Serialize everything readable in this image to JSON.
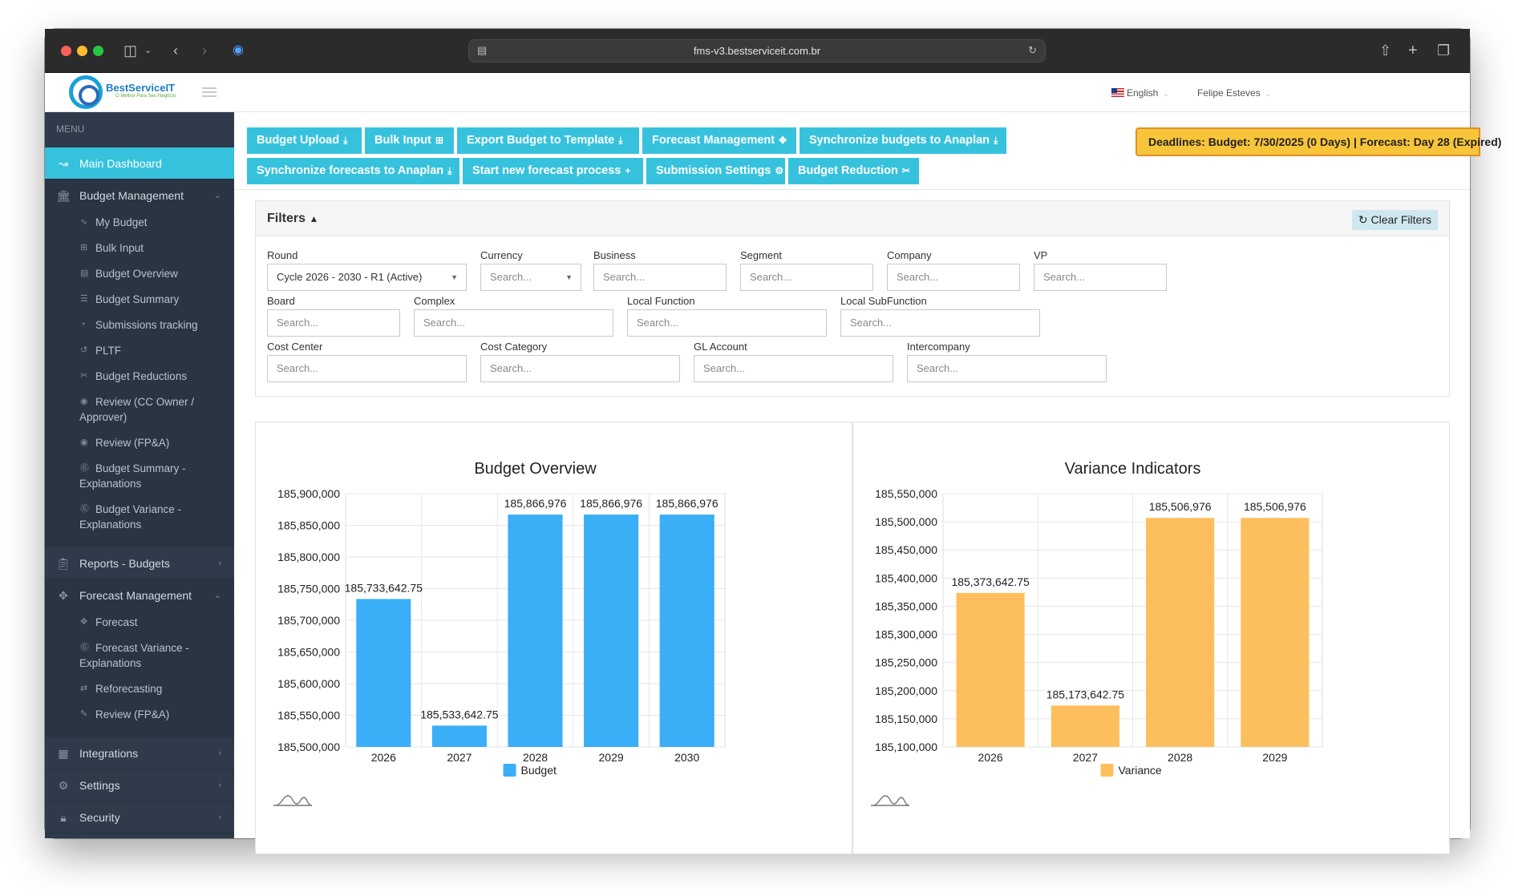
{
  "browser": {
    "url": "fms-v3.bestserviceit.com.br"
  },
  "brand": {
    "name": "BestServiceIT",
    "tagline": "O Melhor Para Seu Negócio"
  },
  "header": {
    "language": "English",
    "user": "Felipe Esteves"
  },
  "sidebar": {
    "menu_label": "MENU",
    "main_dashboard": "Main Dashboard",
    "budget_management": "Budget Management",
    "budget_items": [
      {
        "label": "My Budget",
        "icon": "line-chart-icon"
      },
      {
        "label": "Bulk Input",
        "icon": "plus-square-icon"
      },
      {
        "label": "Budget Overview",
        "icon": "table-icon"
      },
      {
        "label": "Budget Summary",
        "icon": "list-icon"
      },
      {
        "label": "Submissions tracking",
        "icon": "dashboard-icon"
      },
      {
        "label": "PLTF",
        "icon": "history-icon"
      },
      {
        "label": "Budget Reductions",
        "icon": "scissors-icon"
      },
      {
        "label": "Review (CC Owner /",
        "label2": "Approver)",
        "icon": "eye-icon"
      },
      {
        "label": "Review (FP&A)",
        "icon": "eye-icon"
      },
      {
        "label": "Budget Summary -",
        "label2": "Explanations",
        "icon": "question-icon"
      },
      {
        "label": "Budget Variance -",
        "label2": "Explanations",
        "icon": "question-icon"
      }
    ],
    "reports_budgets": "Reports - Budgets",
    "forecast_management": "Forecast Management",
    "forecast_items": [
      {
        "label": "Forecast",
        "icon": "crosshair-icon"
      },
      {
        "label": "Forecast Variance -",
        "label2": "Explanations",
        "icon": "question-icon"
      },
      {
        "label": "Reforecasting",
        "icon": "exchange-icon"
      },
      {
        "label": "Review (FP&A)",
        "icon": "edit-icon"
      }
    ],
    "integrations": "Integrations",
    "settings": "Settings",
    "security": "Security"
  },
  "toolbar": {
    "budget_upload": "Budget Upload",
    "bulk_input": "Bulk Input",
    "export_budget": "Export Budget to Template",
    "forecast_management": "Forecast Management",
    "sync_budgets": "Synchronize budgets to Anaplan",
    "sync_forecasts": "Synchronize forecasts to Anaplan",
    "start_forecast": "Start new forecast process",
    "submission_settings": "Submission Settings",
    "budget_reduction": "Budget Reduction"
  },
  "deadline": "Deadlines: Budget: 7/30/2025 (0 Days) | Forecast: Day 28 (Expired)",
  "filters": {
    "title": "Filters",
    "clear": "Clear Filters",
    "round": {
      "label": "Round",
      "value": "Cycle 2026 - 2030 - R1 (Active)"
    },
    "currency": {
      "label": "Currency",
      "placeholder": "Search..."
    },
    "business": {
      "label": "Business",
      "placeholder": "Search..."
    },
    "segment": {
      "label": "Segment",
      "placeholder": "Search..."
    },
    "company": {
      "label": "Company",
      "placeholder": "Search..."
    },
    "vp": {
      "label": "VP",
      "placeholder": "Search..."
    },
    "board": {
      "label": "Board",
      "placeholder": "Search..."
    },
    "complex": {
      "label": "Complex",
      "placeholder": "Search..."
    },
    "local_function": {
      "label": "Local Function",
      "placeholder": "Search..."
    },
    "local_subfunction": {
      "label": "Local SubFunction",
      "placeholder": "Search..."
    },
    "cost_center": {
      "label": "Cost Center",
      "placeholder": "Search..."
    },
    "cost_category": {
      "label": "Cost Category",
      "placeholder": "Search..."
    },
    "gl_account": {
      "label": "GL Account",
      "placeholder": "Search..."
    },
    "intercompany": {
      "label": "Intercompany",
      "placeholder": "Search..."
    }
  },
  "chart_data": [
    {
      "type": "bar",
      "title": "Budget Overview",
      "categories": [
        "2026",
        "2027",
        "2028",
        "2029",
        "2030"
      ],
      "series": [
        {
          "name": "Budget",
          "values": [
            185733642.75,
            185533642.75,
            185866976,
            185866976,
            185866976
          ]
        }
      ],
      "data_labels": [
        "185,733,642.75",
        "185,533,642.75",
        "185,866,976",
        "185,866,976",
        "185,866,976"
      ],
      "ylim": [
        185500000,
        185900000
      ],
      "yticks": [
        "185,900,000",
        "185,850,000",
        "185,800,000",
        "185,750,000",
        "185,700,000",
        "185,650,000",
        "185,600,000",
        "185,550,000",
        "185,500,000"
      ],
      "color": "#3aaef7",
      "legend": "bottom",
      "grid": true
    },
    {
      "type": "bar",
      "title": "Variance Indicators",
      "categories": [
        "2026",
        "2027",
        "2028",
        "2029"
      ],
      "series": [
        {
          "name": "Variance",
          "values": [
            185373642.75,
            185173642.75,
            185506976,
            185506976
          ]
        }
      ],
      "data_labels": [
        "185,373,642.75",
        "185,173,642.75",
        "185,506,976",
        "185,506,976"
      ],
      "ylim": [
        185100000,
        185550000
      ],
      "yticks": [
        "185,550,000",
        "185,500,000",
        "185,450,000",
        "185,400,000",
        "185,350,000",
        "185,300,000",
        "185,250,000",
        "185,200,000",
        "185,150,000",
        "185,100,000"
      ],
      "color": "#fdbf5e",
      "legend": "bottom",
      "grid": true
    }
  ]
}
